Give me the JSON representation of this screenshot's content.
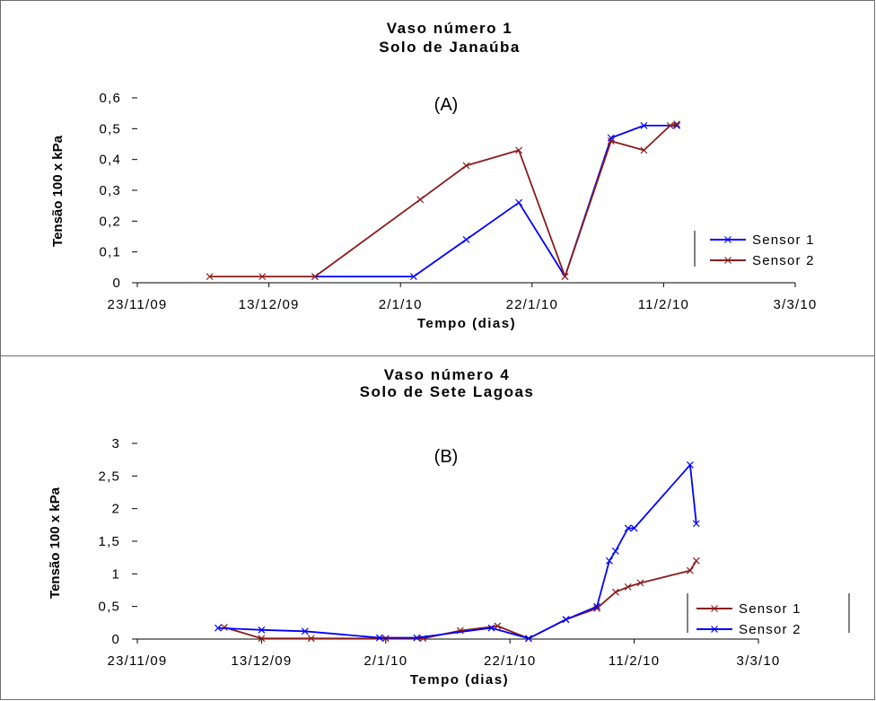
{
  "chart_data": [
    {
      "type": "line",
      "panel_label": "(A)",
      "title": "Vaso número 1",
      "subtitle": "Solo de Janaúba",
      "xlabel": "Tempo (dias)",
      "ylabel": "Tensão 100 x kPa",
      "x_type": "date",
      "xlim": [
        "2009-11-23",
        "2010-03-03"
      ],
      "x_ticks": [
        {
          "date": "2009-11-23",
          "label": "23/11/09"
        },
        {
          "date": "2009-12-13",
          "label": "13/12/09"
        },
        {
          "date": "2010-01-02",
          "label": "2/1/10"
        },
        {
          "date": "2010-01-22",
          "label": "22/1/10"
        },
        {
          "date": "2010-02-11",
          "label": "11/2/10"
        },
        {
          "date": "2010-03-03",
          "label": "3/3/10"
        }
      ],
      "ylim": [
        0,
        0.6
      ],
      "y_ticks": [
        {
          "value": 0,
          "label": "0"
        },
        {
          "value": 0.1,
          "label": "0,1"
        },
        {
          "value": 0.2,
          "label": "0,2"
        },
        {
          "value": 0.3,
          "label": "0,3"
        },
        {
          "value": 0.4,
          "label": "0,4"
        },
        {
          "value": 0.5,
          "label": "0,5"
        },
        {
          "value": 0.6,
          "label": "0,6"
        }
      ],
      "grid": false,
      "legend_position": "right",
      "series": [
        {
          "name": "Sensor 1",
          "color": "#0000ff",
          "points": [
            {
              "x": "2009-12-20",
              "y": 0.02
            },
            {
              "x": "2010-01-04",
              "y": 0.02
            },
            {
              "x": "2010-01-12",
              "y": 0.14
            },
            {
              "x": "2010-01-20",
              "y": 0.26
            },
            {
              "x": "2010-01-27",
              "y": 0.02
            },
            {
              "x": "2010-02-03",
              "y": 0.47
            },
            {
              "x": "2010-02-08",
              "y": 0.51
            },
            {
              "x": "2010-02-13",
              "y": 0.51
            }
          ]
        },
        {
          "name": "Sensor 2",
          "color": "#8b1a1a",
          "points": [
            {
              "x": "2009-12-04",
              "y": 0.02
            },
            {
              "x": "2009-12-12",
              "y": 0.02
            },
            {
              "x": "2009-12-20",
              "y": 0.02
            },
            {
              "x": "2010-01-05",
              "y": 0.27
            },
            {
              "x": "2010-01-12",
              "y": 0.38
            },
            {
              "x": "2010-01-20",
              "y": 0.43
            },
            {
              "x": "2010-01-27",
              "y": 0.02
            },
            {
              "x": "2010-02-03",
              "y": 0.46
            },
            {
              "x": "2010-02-08",
              "y": 0.43
            },
            {
              "x": "2010-02-12",
              "y": 0.51
            },
            {
              "x": "2010-02-13",
              "y": 0.515
            }
          ]
        }
      ]
    },
    {
      "type": "line",
      "panel_label": "(B)",
      "title": "Vaso número 4",
      "subtitle": "Solo de Sete Lagoas",
      "xlabel": "Tempo (dias)",
      "ylabel": "Tensão 100 x kPa",
      "x_type": "date",
      "xlim": [
        "2009-11-23",
        "2010-03-03"
      ],
      "x_ticks": [
        {
          "date": "2009-11-23",
          "label": "23/11/09"
        },
        {
          "date": "2009-12-13",
          "label": "13/12/09"
        },
        {
          "date": "2010-01-02",
          "label": "2/1/10"
        },
        {
          "date": "2010-01-22",
          "label": "22/1/10"
        },
        {
          "date": "2010-02-11",
          "label": "11/2/10"
        },
        {
          "date": "2010-03-03",
          "label": "3/3/10"
        }
      ],
      "ylim": [
        0,
        3
      ],
      "y_ticks": [
        {
          "value": 0,
          "label": "0"
        },
        {
          "value": 0.5,
          "label": "0,5"
        },
        {
          "value": 1,
          "label": "1"
        },
        {
          "value": 1.5,
          "label": "1,5"
        },
        {
          "value": 2,
          "label": "2"
        },
        {
          "value": 2.5,
          "label": "2,5"
        },
        {
          "value": 3,
          "label": "3"
        }
      ],
      "grid": false,
      "legend_position": "right",
      "series": [
        {
          "name": "Sensor 1",
          "color": "#8b1a1a",
          "points": [
            {
              "x": "2009-12-07",
              "y": 0.18
            },
            {
              "x": "2009-12-13",
              "y": 0.01
            },
            {
              "x": "2009-12-21",
              "y": 0.01
            },
            {
              "x": "2010-01-02",
              "y": 0.01
            },
            {
              "x": "2010-01-08",
              "y": 0.01
            },
            {
              "x": "2010-01-14",
              "y": 0.13
            },
            {
              "x": "2010-01-20",
              "y": 0.2
            },
            {
              "x": "2010-01-25",
              "y": 0.01
            },
            {
              "x": "2010-01-31",
              "y": 0.3
            },
            {
              "x": "2010-02-05",
              "y": 0.47
            },
            {
              "x": "2010-02-08",
              "y": 0.72
            },
            {
              "x": "2010-02-10",
              "y": 0.8
            },
            {
              "x": "2010-02-12",
              "y": 0.86
            },
            {
              "x": "2010-02-20",
              "y": 1.05
            },
            {
              "x": "2010-02-21",
              "y": 1.2
            }
          ]
        },
        {
          "name": "Sensor 2",
          "color": "#0000ff",
          "points": [
            {
              "x": "2009-12-06",
              "y": 0.17
            },
            {
              "x": "2009-12-13",
              "y": 0.14
            },
            {
              "x": "2009-12-20",
              "y": 0.12
            },
            {
              "x": "2010-01-01",
              "y": 0.02
            },
            {
              "x": "2010-01-07",
              "y": 0.02
            },
            {
              "x": "2010-01-19",
              "y": 0.17
            },
            {
              "x": "2010-01-25",
              "y": 0.01
            },
            {
              "x": "2010-01-31",
              "y": 0.3
            },
            {
              "x": "2010-02-05",
              "y": 0.5
            },
            {
              "x": "2010-02-07",
              "y": 1.2
            },
            {
              "x": "2010-02-08",
              "y": 1.35
            },
            {
              "x": "2010-02-10",
              "y": 1.7
            },
            {
              "x": "2010-02-11",
              "y": 1.7
            },
            {
              "x": "2010-02-20",
              "y": 2.67
            },
            {
              "x": "2010-02-21",
              "y": 1.77
            }
          ]
        }
      ]
    }
  ]
}
